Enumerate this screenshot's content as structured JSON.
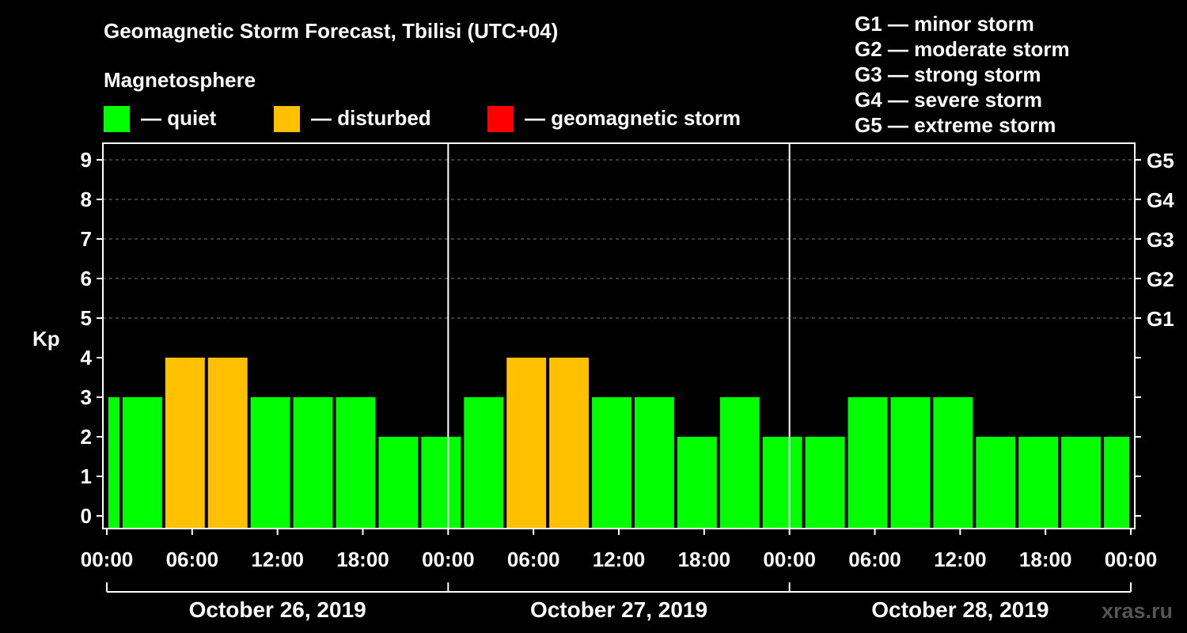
{
  "title": "Geomagnetic Storm Forecast, Tbilisi (UTC+04)",
  "legend": {
    "heading": "Magnetosphere",
    "items": [
      {
        "label": "— quiet",
        "color": "#00ff00"
      },
      {
        "label": "— disturbed",
        "color": "#ffc000"
      },
      {
        "label": "— geomagnetic storm",
        "color": "#ff0000"
      }
    ]
  },
  "g_scale_legend": [
    "G1 — minor storm",
    "G2 — moderate storm",
    "G3 — strong storm",
    "G4 — severe storm",
    "G5 — extreme storm"
  ],
  "watermark": "xras.ru",
  "chart_data": {
    "type": "bar",
    "ylabel": "Kp",
    "ylim": [
      0,
      9
    ],
    "yticks": [
      0,
      1,
      2,
      3,
      4,
      5,
      6,
      7,
      8,
      9
    ],
    "right_ticks": [
      {
        "y": 5,
        "label": "G1"
      },
      {
        "y": 6,
        "label": "G2"
      },
      {
        "y": 7,
        "label": "G3"
      },
      {
        "y": 8,
        "label": "G4"
      },
      {
        "y": 9,
        "label": "G5"
      }
    ],
    "grid": "dashed horizontal at Kp 5–9",
    "x_range_hours": [
      0,
      72
    ],
    "x_tick_labels": [
      "00:00",
      "06:00",
      "12:00",
      "18:00",
      "00:00",
      "06:00",
      "12:00",
      "18:00",
      "00:00",
      "06:00",
      "12:00",
      "18:00",
      "00:00"
    ],
    "days": [
      "October 26, 2019",
      "October 27, 2019",
      "October 28, 2019"
    ],
    "bars": [
      {
        "start": 0,
        "end": 1,
        "kp": 3,
        "status": "quiet"
      },
      {
        "start": 1,
        "end": 4,
        "kp": 3,
        "status": "quiet"
      },
      {
        "start": 4,
        "end": 7,
        "kp": 4,
        "status": "disturbed"
      },
      {
        "start": 7,
        "end": 10,
        "kp": 4,
        "status": "disturbed"
      },
      {
        "start": 10,
        "end": 13,
        "kp": 3,
        "status": "quiet"
      },
      {
        "start": 13,
        "end": 16,
        "kp": 3,
        "status": "quiet"
      },
      {
        "start": 16,
        "end": 19,
        "kp": 3,
        "status": "quiet"
      },
      {
        "start": 19,
        "end": 22,
        "kp": 2,
        "status": "quiet"
      },
      {
        "start": 22,
        "end": 25,
        "kp": 2,
        "status": "quiet"
      },
      {
        "start": 25,
        "end": 28,
        "kp": 3,
        "status": "quiet"
      },
      {
        "start": 28,
        "end": 31,
        "kp": 4,
        "status": "disturbed"
      },
      {
        "start": 31,
        "end": 34,
        "kp": 4,
        "status": "disturbed"
      },
      {
        "start": 34,
        "end": 37,
        "kp": 3,
        "status": "quiet"
      },
      {
        "start": 37,
        "end": 40,
        "kp": 3,
        "status": "quiet"
      },
      {
        "start": 40,
        "end": 43,
        "kp": 2,
        "status": "quiet"
      },
      {
        "start": 43,
        "end": 46,
        "kp": 3,
        "status": "quiet"
      },
      {
        "start": 46,
        "end": 49,
        "kp": 2,
        "status": "quiet"
      },
      {
        "start": 49,
        "end": 52,
        "kp": 2,
        "status": "quiet"
      },
      {
        "start": 52,
        "end": 55,
        "kp": 3,
        "status": "quiet"
      },
      {
        "start": 55,
        "end": 58,
        "kp": 3,
        "status": "quiet"
      },
      {
        "start": 58,
        "end": 61,
        "kp": 3,
        "status": "quiet"
      },
      {
        "start": 61,
        "end": 64,
        "kp": 2,
        "status": "quiet"
      },
      {
        "start": 64,
        "end": 67,
        "kp": 2,
        "status": "quiet"
      },
      {
        "start": 67,
        "end": 70,
        "kp": 2,
        "status": "quiet"
      },
      {
        "start": 70,
        "end": 72,
        "kp": 2,
        "status": "quiet"
      }
    ],
    "status_colors": {
      "quiet": "#00ff00",
      "disturbed": "#ffc000",
      "storm": "#ff0000"
    }
  }
}
